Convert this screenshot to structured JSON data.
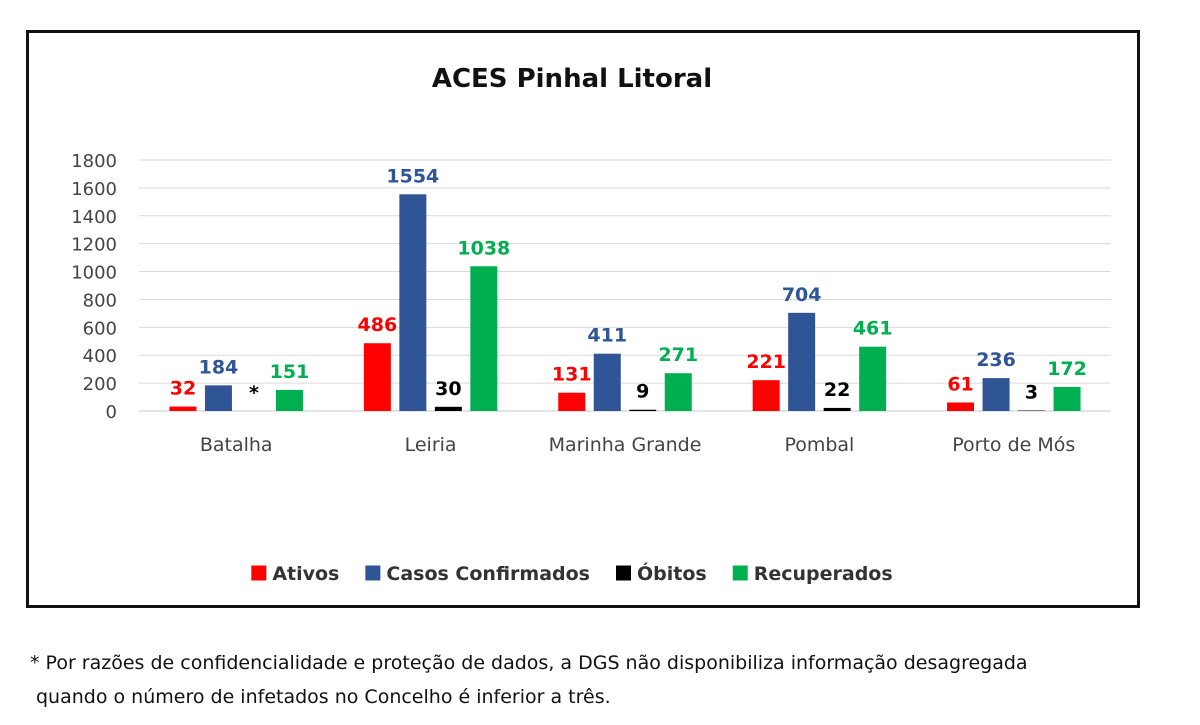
{
  "chart_data": {
    "type": "bar",
    "title": "ACES Pinhal Litoral",
    "categories": [
      "Batalha",
      "Leiria",
      "Marinha Grande",
      "Pombal",
      "Porto de Mós"
    ],
    "series": [
      {
        "name": "Ativos",
        "color": "#ff0000",
        "values": [
          32,
          486,
          131,
          221,
          61
        ],
        "labels": [
          "32",
          "486",
          "131",
          "221",
          "61"
        ]
      },
      {
        "name": "Casos Confirmados",
        "color": "#2f5597",
        "values": [
          184,
          1554,
          411,
          704,
          236
        ],
        "labels": [
          "184",
          "1554",
          "411",
          "704",
          "236"
        ]
      },
      {
        "name": "Óbitos",
        "color": "#000000",
        "values": [
          null,
          30,
          9,
          22,
          3
        ],
        "labels": [
          "*",
          "30",
          "9",
          "22",
          "3"
        ]
      },
      {
        "name": "Recuperados",
        "color": "#00b050",
        "values": [
          151,
          1038,
          271,
          461,
          172
        ],
        "labels": [
          "151",
          "1038",
          "271",
          "461",
          "172"
        ]
      }
    ],
    "ylim": [
      0,
      1800
    ],
    "yticks": [
      0,
      200,
      400,
      600,
      800,
      1000,
      1200,
      1400,
      1600,
      1800
    ],
    "grid": true,
    "legend": "bottom",
    "xlabel": "",
    "ylabel": ""
  },
  "footnote": {
    "line1": "* Por razões de confidencialidade e proteção de dados, a DGS não disponibiliza informação desagregada",
    "line2": "quando o número de infetados no Concelho é inferior a três."
  }
}
